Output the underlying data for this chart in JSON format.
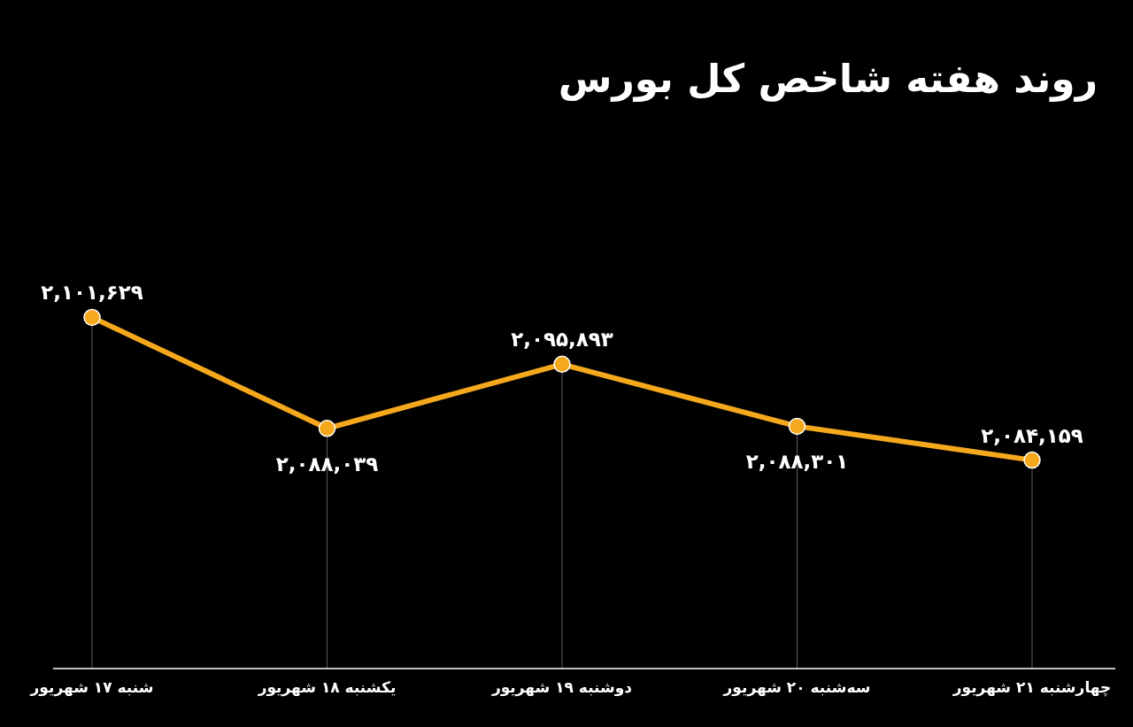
{
  "chart_data": {
    "type": "line",
    "title": "روند هفته شاخص کل بورس",
    "categories": [
      "شنبه ۱۷ شهریور",
      "یکشنبه ۱۸ شهریور",
      "دوشنبه ۱۹ شهریور",
      "سه‌شنبه ۲۰ شهریور",
      "چهارشنبه ۲۱ شهریور"
    ],
    "values": [
      2101629,
      2088039,
      2095893,
      2088301,
      2084159
    ],
    "value_labels": [
      "۲,۱۰۱,۶۲۹",
      "۲,۰۸۸,۰۳۹",
      "۲,۰۹۵,۸۹۳",
      "۲,۰۸۸,۳۰۱",
      "۲,۰۸۴,۱۵۹"
    ],
    "color": "#f5a81c",
    "marker": "circle",
    "line_style": "solid",
    "grid": "x"
  }
}
